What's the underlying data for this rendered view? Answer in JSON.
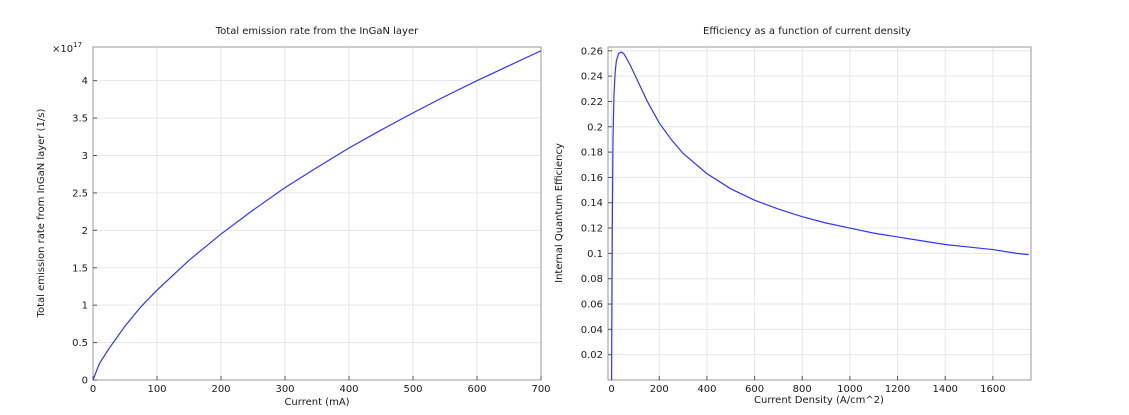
{
  "chart_data": [
    {
      "type": "line",
      "title": "Total emission rate from the InGaN layer",
      "xlabel": "Current (mA)",
      "ylabel": "Total emission rate from InGaN layer (1/s)",
      "y_multiplier": "×10",
      "y_multiplier_exp": "17",
      "xlim": [
        0,
        700
      ],
      "ylim": [
        0,
        4.45
      ],
      "grid": true,
      "x_ticks": [
        0,
        100,
        200,
        300,
        400,
        500,
        600,
        700
      ],
      "y_ticks": [
        0,
        0.5,
        1,
        1.5,
        2,
        2.5,
        3,
        3.5,
        4
      ],
      "series": [
        {
          "color": "#3333ff",
          "x": [
            0,
            10,
            25,
            50,
            75,
            100,
            150,
            200,
            250,
            300,
            350,
            400,
            450,
            500,
            550,
            600,
            650,
            700
          ],
          "y": [
            0,
            0.22,
            0.42,
            0.72,
            0.98,
            1.2,
            1.6,
            1.95,
            2.27,
            2.57,
            2.84,
            3.1,
            3.34,
            3.57,
            3.79,
            4.0,
            4.2,
            4.4
          ]
        }
      ]
    },
    {
      "type": "line",
      "title": "Efficiency as a function of current density",
      "xlabel": "Current Density (A/cm^2)",
      "ylabel": "Internal Quantum Efficiency",
      "xlim": [
        -15,
        1760
      ],
      "ylim": [
        0,
        0.263
      ],
      "grid": true,
      "x_ticks": [
        0,
        200,
        400,
        600,
        800,
        1000,
        1200,
        1400,
        1600
      ],
      "y_ticks": [
        0.02,
        0.04,
        0.06,
        0.08,
        0.1,
        0.12,
        0.14,
        0.16,
        0.18,
        0.2,
        0.22,
        0.24,
        0.26
      ],
      "series": [
        {
          "color": "#3333ff",
          "x": [
            0,
            3,
            6,
            10,
            15,
            20,
            30,
            40,
            50,
            60,
            80,
            100,
            150,
            200,
            250,
            300,
            400,
            500,
            600,
            700,
            800,
            900,
            1000,
            1100,
            1200,
            1300,
            1400,
            1500,
            1600,
            1700,
            1750
          ],
          "y": [
            0.0,
            0.12,
            0.19,
            0.225,
            0.243,
            0.252,
            0.258,
            0.259,
            0.258,
            0.255,
            0.248,
            0.24,
            0.22,
            0.203,
            0.19,
            0.179,
            0.163,
            0.151,
            0.142,
            0.135,
            0.129,
            0.124,
            0.12,
            0.116,
            0.113,
            0.11,
            0.107,
            0.105,
            0.103,
            0.1,
            0.099
          ]
        }
      ]
    }
  ]
}
